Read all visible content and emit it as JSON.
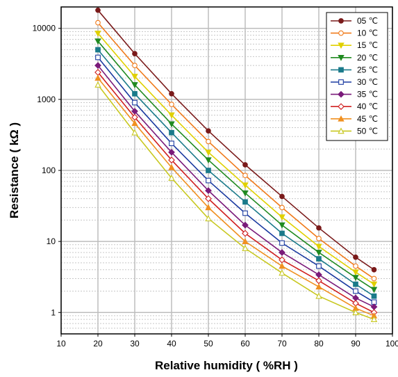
{
  "chart_data": {
    "type": "line",
    "title": "",
    "xlabel": "Relative humidity ( %RH )",
    "ylabel": "Resistance ( kΩ )",
    "xlim": [
      10,
      100
    ],
    "ylim": [
      0.5,
      20000
    ],
    "y_scale": "log",
    "grid": true,
    "legend_position": "top-right",
    "x_ticks": [
      "10",
      "20",
      "30",
      "40",
      "50",
      "60",
      "70",
      "80",
      "90",
      "100"
    ],
    "y_ticks": [
      {
        "value": 1,
        "label": "1"
      },
      {
        "value": 10,
        "label": "10"
      },
      {
        "value": 100,
        "label": "100"
      },
      {
        "value": 1000,
        "label": "1000"
      },
      {
        "value": 10000,
        "label": "10000"
      }
    ],
    "x": [
      20,
      30,
      40,
      50,
      60,
      70,
      80,
      90,
      95
    ],
    "series": [
      {
        "name": "05 ℃",
        "color": "#7a1a1a",
        "marker": "circle-filled",
        "values": [
          18000,
          4400,
          1200,
          360,
          120,
          43,
          15.5,
          6.0,
          4.0
        ]
      },
      {
        "name": "10 ℃",
        "color": "#f07a1a",
        "marker": "circle-open",
        "values": [
          12000,
          3000,
          850,
          255,
          85,
          30,
          11.0,
          4.5,
          3.0
        ]
      },
      {
        "name": "15 ℃",
        "color": "#e0d000",
        "marker": "triangle-down",
        "values": [
          8500,
          2100,
          600,
          180,
          62,
          22,
          8.5,
          3.7,
          2.5
        ]
      },
      {
        "name": "20 ℃",
        "color": "#208a20",
        "marker": "triangle-down",
        "values": [
          6600,
          1600,
          450,
          140,
          48,
          17,
          7.0,
          3.1,
          2.1
        ]
      },
      {
        "name": "25 ℃",
        "color": "#1a7a8a",
        "marker": "square-filled",
        "values": [
          5000,
          1200,
          340,
          100,
          36,
          13,
          5.7,
          2.5,
          1.7
        ]
      },
      {
        "name": "30 ℃",
        "color": "#1a3aa0",
        "marker": "square-open",
        "values": [
          3900,
          900,
          240,
          72,
          25,
          9.5,
          4.5,
          2.0,
          1.4
        ]
      },
      {
        "name": "35 ℃",
        "color": "#7a1a7a",
        "marker": "diamond-filled",
        "values": [
          3000,
          680,
          180,
          52,
          17,
          7.0,
          3.4,
          1.6,
          1.2
        ]
      },
      {
        "name": "40 ℃",
        "color": "#d02020",
        "marker": "diamond-open",
        "values": [
          2400,
          560,
          140,
          40,
          13,
          5.5,
          2.8,
          1.35,
          1.0
        ]
      },
      {
        "name": "45 ℃",
        "color": "#f09020",
        "marker": "triangle-up",
        "values": [
          2000,
          460,
          110,
          30,
          10,
          4.5,
          2.3,
          1.15,
          0.9
        ]
      },
      {
        "name": "50 ℃",
        "color": "#c8c820",
        "marker": "triangle-up-open",
        "values": [
          1600,
          340,
          78,
          21,
          8.0,
          3.6,
          1.7,
          1.0,
          0.8
        ]
      }
    ]
  }
}
